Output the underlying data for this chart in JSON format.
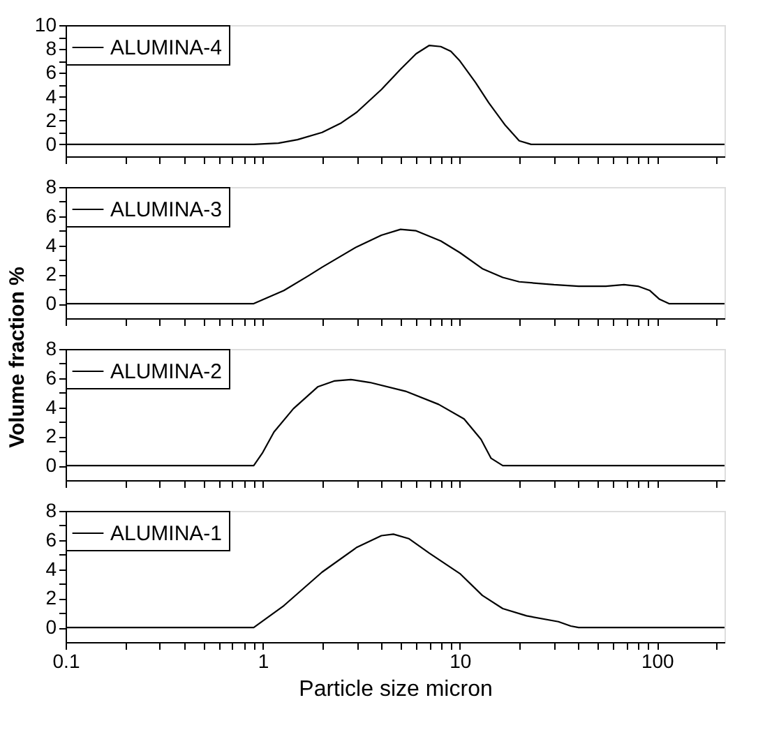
{
  "chart_data": [
    {
      "type": "line",
      "ylim": [
        -1,
        10
      ],
      "yticks": [
        0,
        {
          "value": 1,
          "label": null
        },
        2,
        {
          "value": 3,
          "label": null
        },
        4,
        {
          "value": 5,
          "label": null
        },
        6,
        {
          "value": 7,
          "label": null
        },
        8,
        {
          "value": 9,
          "label": null
        },
        10
      ],
      "xlim": [
        0.1,
        220
      ],
      "xticks": [
        0.1,
        {
          "value": 0.2,
          "label": null
        },
        {
          "value": 0.3,
          "label": null
        },
        {
          "value": 0.4,
          "label": null
        },
        {
          "value": 0.5,
          "label": null
        },
        {
          "value": 0.6,
          "label": null
        },
        {
          "value": 0.7,
          "label": null
        },
        {
          "value": 0.8,
          "label": null
        },
        {
          "value": 0.9,
          "label": null
        },
        1,
        {
          "value": 2,
          "label": null
        },
        {
          "value": 3,
          "label": null
        },
        {
          "value": 4,
          "label": null
        },
        {
          "value": 5,
          "label": null
        },
        {
          "value": 6,
          "label": null
        },
        {
          "value": 7,
          "label": null
        },
        {
          "value": 8,
          "label": null
        },
        {
          "value": 9,
          "label": null
        },
        10,
        {
          "value": 20,
          "label": null
        },
        {
          "value": 30,
          "label": null
        },
        {
          "value": 40,
          "label": null
        },
        {
          "value": 50,
          "label": null
        },
        {
          "value": 60,
          "label": null
        },
        {
          "value": 70,
          "label": null
        },
        {
          "value": 80,
          "label": null
        },
        {
          "value": 90,
          "label": null
        },
        100,
        {
          "value": 200,
          "label": null
        }
      ],
      "log": "x",
      "tick_labels": "y",
      "legend": "top left",
      "grid": false,
      "series": [
        {
          "name": "ALUMINA-4",
          "color": "#000000",
          "x": [
            0.1,
            0.9,
            1.2,
            1.5,
            2,
            2.5,
            3,
            4,
            5,
            6,
            7,
            8,
            9,
            10,
            12,
            14,
            17,
            20,
            23,
            220
          ],
          "values": [
            0,
            0,
            0.1,
            0.4,
            1.0,
            1.8,
            2.7,
            4.6,
            6.3,
            7.6,
            8.3,
            8.2,
            7.8,
            7.0,
            5.2,
            3.5,
            1.6,
            0.3,
            0,
            0
          ]
        }
      ]
    },
    {
      "type": "line",
      "ylabel": "Volume fraction %",
      "ylim": [
        -1,
        8
      ],
      "yticks": [
        0,
        {
          "value": 1,
          "label": null
        },
        2,
        {
          "value": 3,
          "label": null
        },
        4,
        {
          "value": 5,
          "label": null
        },
        6,
        {
          "value": 7,
          "label": null
        },
        8
      ],
      "xlim": [
        0.1,
        220
      ],
      "xticks": [
        0.1,
        {
          "value": 0.2,
          "label": null
        },
        {
          "value": 0.3,
          "label": null
        },
        {
          "value": 0.4,
          "label": null
        },
        {
          "value": 0.5,
          "label": null
        },
        {
          "value": 0.6,
          "label": null
        },
        {
          "value": 0.7,
          "label": null
        },
        {
          "value": 0.8,
          "label": null
        },
        {
          "value": 0.9,
          "label": null
        },
        1,
        {
          "value": 2,
          "label": null
        },
        {
          "value": 3,
          "label": null
        },
        {
          "value": 4,
          "label": null
        },
        {
          "value": 5,
          "label": null
        },
        {
          "value": 6,
          "label": null
        },
        {
          "value": 7,
          "label": null
        },
        {
          "value": 8,
          "label": null
        },
        {
          "value": 9,
          "label": null
        },
        10,
        {
          "value": 20,
          "label": null
        },
        {
          "value": 30,
          "label": null
        },
        {
          "value": 40,
          "label": null
        },
        {
          "value": 50,
          "label": null
        },
        {
          "value": 60,
          "label": null
        },
        {
          "value": 70,
          "label": null
        },
        {
          "value": 80,
          "label": null
        },
        {
          "value": 90,
          "label": null
        },
        100,
        {
          "value": 200,
          "label": null
        }
      ],
      "log": "x",
      "tick_labels": "y",
      "legend": "top left",
      "grid": false,
      "series": [
        {
          "name": "ALUMINA-3",
          "color": "#000000",
          "x": [
            0.1,
            0.9,
            1.28,
            1.7,
            2,
            3,
            4,
            5,
            6,
            8,
            10,
            13,
            16.5,
            20,
            30,
            40,
            55,
            68,
            80,
            92,
            103,
            115,
            220
          ],
          "values": [
            0,
            0,
            0.9,
            1.9,
            2.5,
            3.9,
            4.7,
            5.1,
            5.0,
            4.3,
            3.5,
            2.4,
            1.8,
            1.5,
            1.3,
            1.2,
            1.2,
            1.3,
            1.2,
            0.9,
            0.3,
            0,
            0
          ]
        }
      ]
    },
    {
      "type": "line",
      "ylim": [
        -1,
        8
      ],
      "yticks": [
        0,
        {
          "value": 1,
          "label": null
        },
        2,
        {
          "value": 3,
          "label": null
        },
        4,
        {
          "value": 5,
          "label": null
        },
        6,
        {
          "value": 7,
          "label": null
        },
        8
      ],
      "xlim": [
        0.1,
        220
      ],
      "xticks": [
        0.1,
        {
          "value": 0.2,
          "label": null
        },
        {
          "value": 0.3,
          "label": null
        },
        {
          "value": 0.4,
          "label": null
        },
        {
          "value": 0.5,
          "label": null
        },
        {
          "value": 0.6,
          "label": null
        },
        {
          "value": 0.7,
          "label": null
        },
        {
          "value": 0.8,
          "label": null
        },
        {
          "value": 0.9,
          "label": null
        },
        1,
        {
          "value": 2,
          "label": null
        },
        {
          "value": 3,
          "label": null
        },
        {
          "value": 4,
          "label": null
        },
        {
          "value": 5,
          "label": null
        },
        {
          "value": 6,
          "label": null
        },
        {
          "value": 7,
          "label": null
        },
        {
          "value": 8,
          "label": null
        },
        {
          "value": 9,
          "label": null
        },
        10,
        {
          "value": 20,
          "label": null
        },
        {
          "value": 30,
          "label": null
        },
        {
          "value": 40,
          "label": null
        },
        {
          "value": 50,
          "label": null
        },
        {
          "value": 60,
          "label": null
        },
        {
          "value": 70,
          "label": null
        },
        {
          "value": 80,
          "label": null
        },
        {
          "value": 90,
          "label": null
        },
        100,
        {
          "value": 200,
          "label": null
        }
      ],
      "log": "x",
      "tick_labels": "y",
      "legend": "top left",
      "grid": false,
      "series": [
        {
          "name": "ALUMINA-2",
          "color": "#000000",
          "x": [
            0.1,
            0.9,
            1.0,
            1.14,
            1.43,
            1.9,
            2.3,
            2.8,
            3.5,
            5.3,
            7.8,
            10.5,
            12.8,
            14.4,
            16.5,
            220
          ],
          "values": [
            0,
            0,
            0.9,
            2.3,
            3.9,
            5.4,
            5.8,
            5.9,
            5.7,
            5.1,
            4.2,
            3.2,
            1.8,
            0.5,
            0,
            0
          ]
        }
      ]
    },
    {
      "type": "line",
      "xlabel": "Particle size micron",
      "ylim": [
        -1,
        8
      ],
      "yticks": [
        0,
        {
          "value": 1,
          "label": null
        },
        2,
        {
          "value": 3,
          "label": null
        },
        4,
        {
          "value": 5,
          "label": null
        },
        6,
        {
          "value": 7,
          "label": null
        },
        8
      ],
      "xlim": [
        0.1,
        220
      ],
      "xticks": [
        0.1,
        {
          "value": 0.2,
          "label": null
        },
        {
          "value": 0.3,
          "label": null
        },
        {
          "value": 0.4,
          "label": null
        },
        {
          "value": 0.5,
          "label": null
        },
        {
          "value": 0.6,
          "label": null
        },
        {
          "value": 0.7,
          "label": null
        },
        {
          "value": 0.8,
          "label": null
        },
        {
          "value": 0.9,
          "label": null
        },
        1,
        {
          "value": 2,
          "label": null
        },
        {
          "value": 3,
          "label": null
        },
        {
          "value": 4,
          "label": null
        },
        {
          "value": 5,
          "label": null
        },
        {
          "value": 6,
          "label": null
        },
        {
          "value": 7,
          "label": null
        },
        {
          "value": 8,
          "label": null
        },
        {
          "value": 9,
          "label": null
        },
        10,
        {
          "value": 20,
          "label": null
        },
        {
          "value": 30,
          "label": null
        },
        {
          "value": 40,
          "label": null
        },
        {
          "value": 50,
          "label": null
        },
        {
          "value": 60,
          "label": null
        },
        {
          "value": 70,
          "label": null
        },
        {
          "value": 80,
          "label": null
        },
        {
          "value": 90,
          "label": null
        },
        100,
        {
          "value": 200,
          "label": null
        }
      ],
      "log": "x",
      "legend": "top left",
      "grid": false,
      "series": [
        {
          "name": "ALUMINA-1",
          "color": "#000000",
          "x": [
            0.1,
            0.9,
            1.28,
            2,
            3,
            4,
            4.6,
            5.5,
            7,
            10,
            13,
            16.5,
            21.8,
            31.6,
            36.5,
            40,
            220
          ],
          "values": [
            0,
            0,
            1.5,
            3.8,
            5.5,
            6.3,
            6.4,
            6.1,
            5.1,
            3.7,
            2.2,
            1.3,
            0.8,
            0.4,
            0.1,
            0,
            0
          ]
        }
      ]
    }
  ]
}
